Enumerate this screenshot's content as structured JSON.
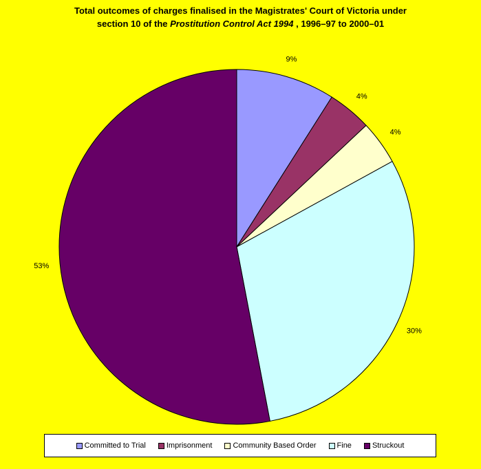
{
  "chart_data": {
    "type": "pie",
    "title_line1": "Total outcomes of charges finalised in the Magistrates' Court of Victoria under",
    "title_line2_prefix": "section 10 of the ",
    "title_line2_italic": "Prostitution Control Act 1994",
    "title_line2_suffix": " , 1996–97 to 2000–01",
    "legend_position": "bottom",
    "categories": [
      "Committed to Trial",
      "Imprisonment",
      "Community Based Order",
      "Fine",
      "Struckout"
    ],
    "values": [
      9,
      4,
      4,
      30,
      53
    ],
    "data_labels": [
      "9%",
      "4%",
      "4%",
      "30%",
      "53%"
    ],
    "colors": [
      "#9999ff",
      "#993366",
      "#ffffcc",
      "#ccffff",
      "#660066"
    ]
  },
  "background_color": "#ffff00"
}
